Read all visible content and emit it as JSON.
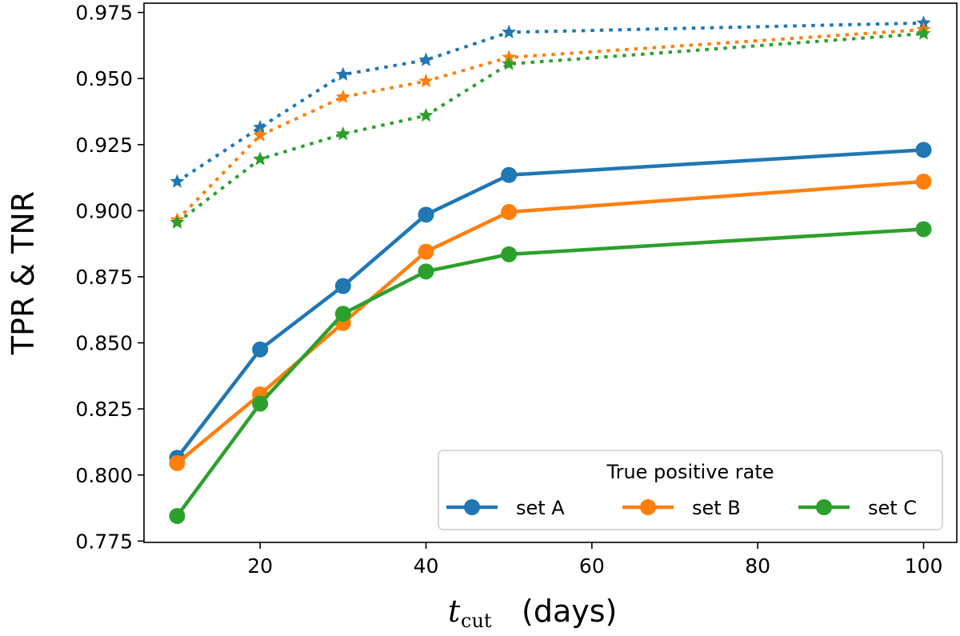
{
  "chart_data": {
    "type": "line",
    "x": [
      10,
      20,
      30,
      40,
      50,
      100
    ],
    "xlim": [
      6,
      104
    ],
    "ylim": [
      0.7745,
      0.9785
    ],
    "xticks": [
      20,
      40,
      60,
      80,
      100
    ],
    "xtick_labels": [
      "20",
      "40",
      "60",
      "80",
      "100"
    ],
    "yticks": [
      0.775,
      0.8,
      0.825,
      0.85,
      0.875,
      0.9,
      0.925,
      0.95,
      0.975
    ],
    "ytick_labels": [
      "0.775",
      "0.800",
      "0.825",
      "0.850",
      "0.875",
      "0.900",
      "0.925",
      "0.950",
      "0.975"
    ],
    "xlabel_main": "t",
    "xlabel_sub": "cut",
    "xlabel_units": "(days)",
    "ylabel": "TPR & TNR",
    "legend": {
      "title": "True positive rate",
      "location": "lower-right",
      "entries": [
        "set A",
        "set B",
        "set C"
      ]
    },
    "series": [
      {
        "name": "set A",
        "metric": "TPR",
        "color": "#1f77b4",
        "linestyle": "solid",
        "marker": "circle",
        "values": [
          0.8065,
          0.8475,
          0.8715,
          0.8985,
          0.9135,
          0.923
        ]
      },
      {
        "name": "set B",
        "metric": "TPR",
        "color": "#ff7f0e",
        "linestyle": "solid",
        "marker": "circle",
        "values": [
          0.8045,
          0.8305,
          0.8575,
          0.8845,
          0.8995,
          0.911
        ]
      },
      {
        "name": "set C",
        "metric": "TPR",
        "color": "#2ca02c",
        "linestyle": "solid",
        "marker": "circle",
        "values": [
          0.7845,
          0.827,
          0.861,
          0.877,
          0.8835,
          0.893
        ]
      },
      {
        "name": "set A",
        "metric": "TNR",
        "color": "#1f77b4",
        "linestyle": "dotted",
        "marker": "star",
        "values": [
          0.911,
          0.9315,
          0.9515,
          0.957,
          0.9675,
          0.971
        ]
      },
      {
        "name": "set B",
        "metric": "TNR",
        "color": "#ff7f0e",
        "linestyle": "dotted",
        "marker": "star",
        "values": [
          0.8965,
          0.9285,
          0.943,
          0.949,
          0.958,
          0.9685
        ]
      },
      {
        "name": "set C",
        "metric": "TNR",
        "color": "#2ca02c",
        "linestyle": "dotted",
        "marker": "star",
        "values": [
          0.8955,
          0.9195,
          0.929,
          0.936,
          0.9555,
          0.967
        ]
      }
    ]
  }
}
